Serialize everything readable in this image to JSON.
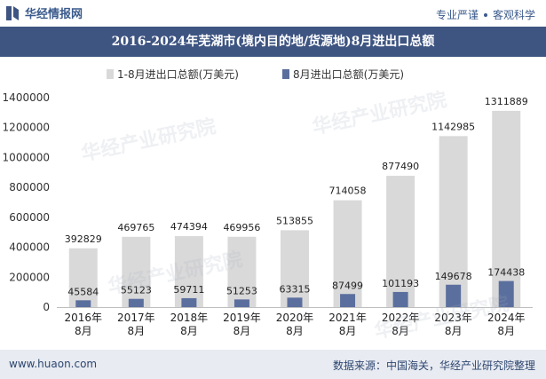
{
  "header": {
    "logo_text": "华经情报网",
    "tagline_left": "专业严谨",
    "tagline_right": "客观科学"
  },
  "title": "2016-2024年芜湖市(境内目的地/货源地)8月进出口总额",
  "footer": {
    "website": "www.huaon.com",
    "source": "数据来源：中国海关，华经产业研究院整理"
  },
  "watermark": "华经产业研究院",
  "colors": {
    "header_bg": "#3e5481",
    "series1": "#d9d9d9",
    "series2": "#5b6f9e",
    "footer_bg": "#e8ebf1"
  },
  "chart_data": {
    "type": "bar",
    "title": "2016-2024年芜湖市(境内目的地/货源地)8月进出口总额",
    "categories": [
      "2016年\n8月",
      "2017年\n8月",
      "2018年\n8月",
      "2019年\n8月",
      "2020年\n8月",
      "2021年\n8月",
      "2022年\n8月",
      "2023年\n8月",
      "2024年\n8月"
    ],
    "series": [
      {
        "name": "1-8月进出口总额(万美元)",
        "values": [
          392829,
          469765,
          474394,
          469956,
          513855,
          714058,
          877490,
          1142985,
          1311889
        ]
      },
      {
        "name": "8月进出口总额(万美元)",
        "values": [
          45584,
          55123,
          59711,
          51253,
          63315,
          87499,
          101193,
          149678,
          174438
        ]
      }
    ],
    "ylim": [
      0,
      1400000
    ],
    "yticks": [
      0,
      200000,
      400000,
      600000,
      800000,
      1000000,
      1200000,
      1400000
    ],
    "xlabel": "",
    "ylabel": "",
    "legend": "top-left",
    "grid": false
  }
}
